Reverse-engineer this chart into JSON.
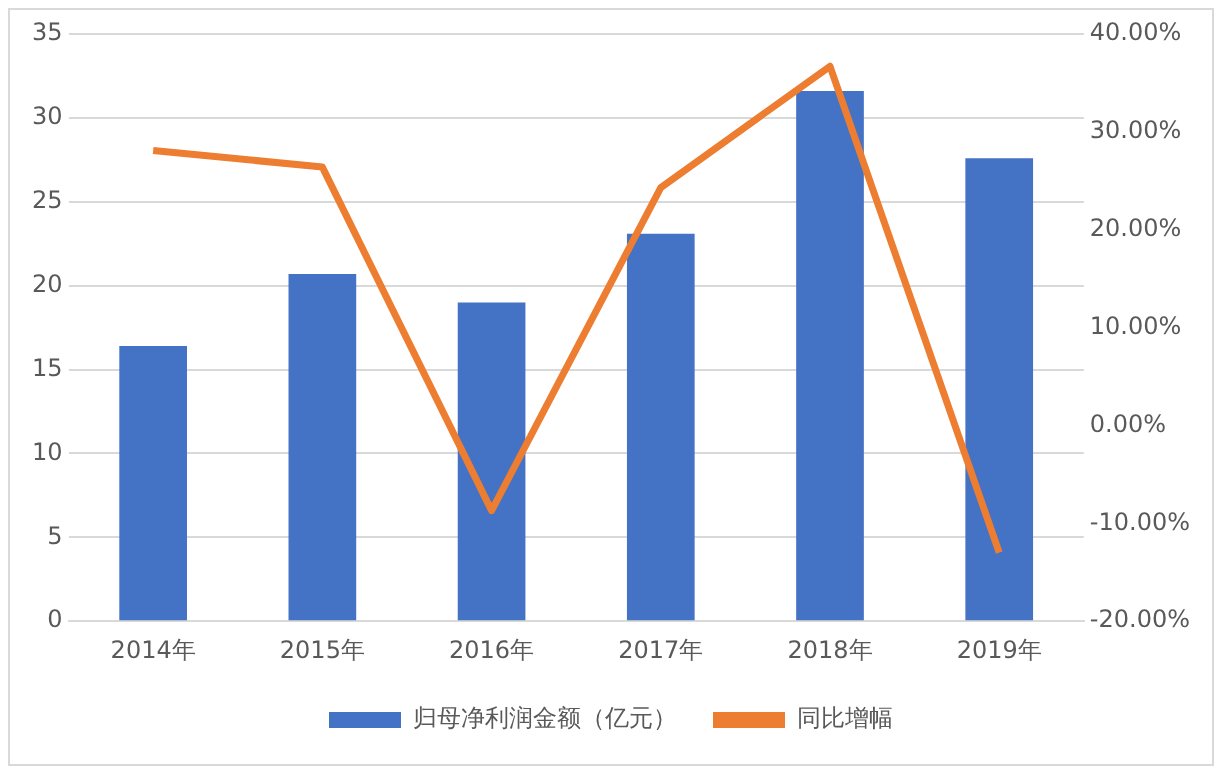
{
  "chart_data": {
    "type": "bar",
    "categories": [
      "2014年",
      "2015年",
      "2016年",
      "2017年",
      "2018年",
      "2019年"
    ],
    "series": [
      {
        "name": "归母净利润金额（亿元）",
        "color": "#4472c4",
        "values": [
          16.4,
          20.7,
          19.0,
          23.1,
          31.6,
          27.6
        ]
      },
      {
        "name": "同比增幅",
        "type": "line",
        "axis": "y2",
        "color": "#ed7d31",
        "marker": "none",
        "values": [
          28.1,
          26.4,
          -8.7,
          24.3,
          36.7,
          -13.0
        ]
      }
    ],
    "ylim": [
      0,
      35
    ],
    "yticks": [
      0,
      5,
      10,
      15,
      20,
      25,
      30,
      35
    ],
    "y2lim": [
      -20,
      40
    ],
    "y2ticks": [
      {
        "value": -20,
        "label": "-20.00%"
      },
      {
        "value": -10,
        "label": "-10.00%"
      },
      {
        "value": 0,
        "label": "0.00%"
      },
      {
        "value": 10,
        "label": "10.00%"
      },
      {
        "value": 20,
        "label": "20.00%"
      },
      {
        "value": 30,
        "label": "30.00%"
      },
      {
        "value": 40,
        "label": "40.00%"
      }
    ],
    "grid": "y",
    "legend": "bottom"
  }
}
